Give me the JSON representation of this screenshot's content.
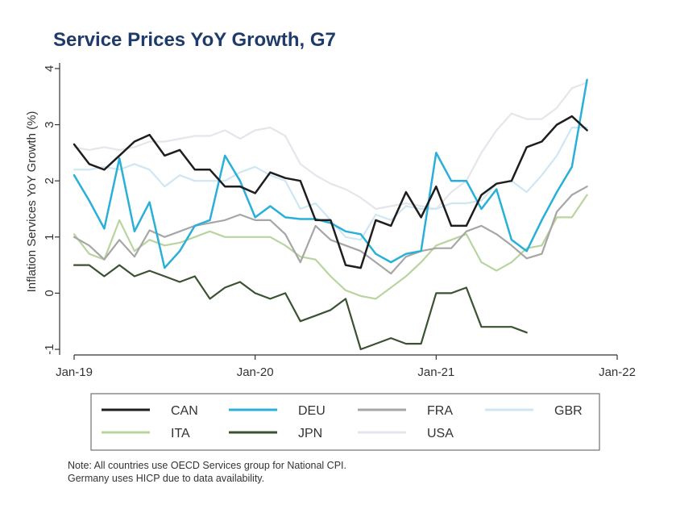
{
  "chart_data": {
    "type": "line",
    "title": "Service Prices YoY Growth, G7",
    "ylabel": "Inflation Services YoY Growth (%)",
    "xlabel": "",
    "xlim": [
      0,
      36
    ],
    "ylim": [
      -1.1,
      4.1
    ],
    "yticks": [
      -1,
      0,
      1,
      2,
      3,
      4
    ],
    "xticks": [
      {
        "x": 0,
        "label": "Jan-19"
      },
      {
        "x": 12,
        "label": "Jan-20"
      },
      {
        "x": 24,
        "label": "Jan-21"
      },
      {
        "x": 36,
        "label": "Jan-22"
      }
    ],
    "x": [
      0,
      1,
      2,
      3,
      4,
      5,
      6,
      7,
      8,
      9,
      10,
      11,
      12,
      13,
      14,
      15,
      16,
      17,
      18,
      19,
      20,
      21,
      22,
      23,
      24,
      25,
      26,
      27,
      28,
      29,
      30,
      31,
      32,
      33,
      34
    ],
    "series": [
      {
        "name": "CAN",
        "color": "#1e1e1e",
        "width": 2.5,
        "values": [
          2.65,
          2.3,
          2.2,
          2.45,
          2.7,
          2.82,
          2.45,
          2.55,
          2.2,
          2.2,
          1.9,
          1.9,
          1.78,
          2.15,
          2.05,
          2.0,
          1.3,
          1.3,
          0.5,
          0.45,
          1.3,
          1.2,
          1.8,
          1.35,
          1.9,
          1.2,
          1.2,
          1.75,
          1.95,
          2.0,
          2.6,
          2.7,
          3.0,
          3.15,
          2.9
        ]
      },
      {
        "name": "DEU",
        "color": "#29b0d8",
        "width": 2.5,
        "values": [
          2.1,
          1.65,
          1.15,
          2.4,
          1.1,
          1.62,
          0.45,
          0.75,
          1.2,
          1.3,
          2.45,
          2.0,
          1.35,
          1.55,
          1.35,
          1.32,
          1.32,
          1.25,
          1.1,
          1.05,
          0.7,
          0.55,
          0.7,
          0.75,
          2.5,
          2.0,
          2.0,
          1.5,
          1.85,
          0.95,
          0.75,
          1.3,
          1.8,
          2.25,
          3.8
        ]
      },
      {
        "name": "FRA",
        "color": "#a6a6a6",
        "width": 2.2,
        "values": [
          1.0,
          0.85,
          0.6,
          0.95,
          0.65,
          1.12,
          1.0,
          1.1,
          1.2,
          1.25,
          1.3,
          1.4,
          1.3,
          1.3,
          1.05,
          0.55,
          1.2,
          0.95,
          0.85,
          0.75,
          0.55,
          0.35,
          0.65,
          0.75,
          0.8,
          0.8,
          1.1,
          1.2,
          1.05,
          0.85,
          0.62,
          0.7,
          1.45,
          1.75,
          1.9
        ]
      },
      {
        "name": "GBR",
        "color": "#cfe7f3",
        "width": 2.2,
        "values": [
          2.2,
          2.2,
          2.25,
          2.2,
          2.3,
          2.2,
          1.9,
          2.1,
          2.0,
          2.0,
          2.0,
          2.15,
          2.25,
          2.1,
          2.0,
          1.5,
          1.6,
          1.3,
          1.0,
          0.95,
          1.4,
          1.3,
          1.55,
          1.5,
          1.5,
          1.6,
          1.6,
          1.65,
          1.95,
          2.0,
          1.8,
          2.1,
          2.45,
          2.95,
          2.95
        ]
      },
      {
        "name": "ITA",
        "color": "#b9d49e",
        "width": 2.2,
        "values": [
          1.05,
          0.7,
          0.6,
          1.3,
          0.75,
          0.95,
          0.85,
          0.9,
          1.0,
          1.1,
          1.0,
          1.0,
          1.0,
          1.0,
          0.85,
          0.65,
          0.6,
          0.3,
          0.05,
          -0.05,
          -0.1,
          0.1,
          0.3,
          0.55,
          0.85,
          0.95,
          1.05,
          0.55,
          0.4,
          0.55,
          0.8,
          0.85,
          1.35,
          1.35,
          1.75
        ]
      },
      {
        "name": "JPN",
        "color": "#3b5232",
        "width": 2.2,
        "values": [
          0.5,
          0.5,
          0.3,
          0.5,
          0.3,
          0.4,
          0.3,
          0.2,
          0.3,
          -0.1,
          0.1,
          0.2,
          0.0,
          -0.1,
          0.0,
          -0.5,
          -0.4,
          -0.3,
          -0.1,
          -1.0,
          -0.9,
          -0.8,
          -0.9,
          -0.9,
          0.0,
          0.0,
          0.1,
          -0.6,
          -0.6,
          -0.6,
          -0.7,
          null,
          null,
          null,
          null
        ]
      },
      {
        "name": "USA",
        "color": "#e5e5ec",
        "width": 2.2,
        "values": [
          2.6,
          2.55,
          2.6,
          2.55,
          2.6,
          2.7,
          2.7,
          2.75,
          2.8,
          2.8,
          2.9,
          2.75,
          2.9,
          2.95,
          2.8,
          2.3,
          2.1,
          1.95,
          1.85,
          1.7,
          1.5,
          1.55,
          1.6,
          1.55,
          1.5,
          1.8,
          2.0,
          2.5,
          2.9,
          3.2,
          3.1,
          3.1,
          3.3,
          3.65,
          3.75
        ]
      }
    ]
  },
  "legend": {
    "items": [
      {
        "label": "CAN",
        "color": "#1e1e1e"
      },
      {
        "label": "DEU",
        "color": "#29b0d8"
      },
      {
        "label": "FRA",
        "color": "#a6a6a6"
      },
      {
        "label": "GBR",
        "color": "#cfe7f3"
      },
      {
        "label": "ITA",
        "color": "#b9d49e"
      },
      {
        "label": "JPN",
        "color": "#3b5232"
      },
      {
        "label": "USA",
        "color": "#e5e5ec"
      }
    ]
  },
  "note": {
    "line1": "Note: All countries use OECD Services group for National CPI.",
    "line2": "Germany uses HICP due to data availability."
  }
}
